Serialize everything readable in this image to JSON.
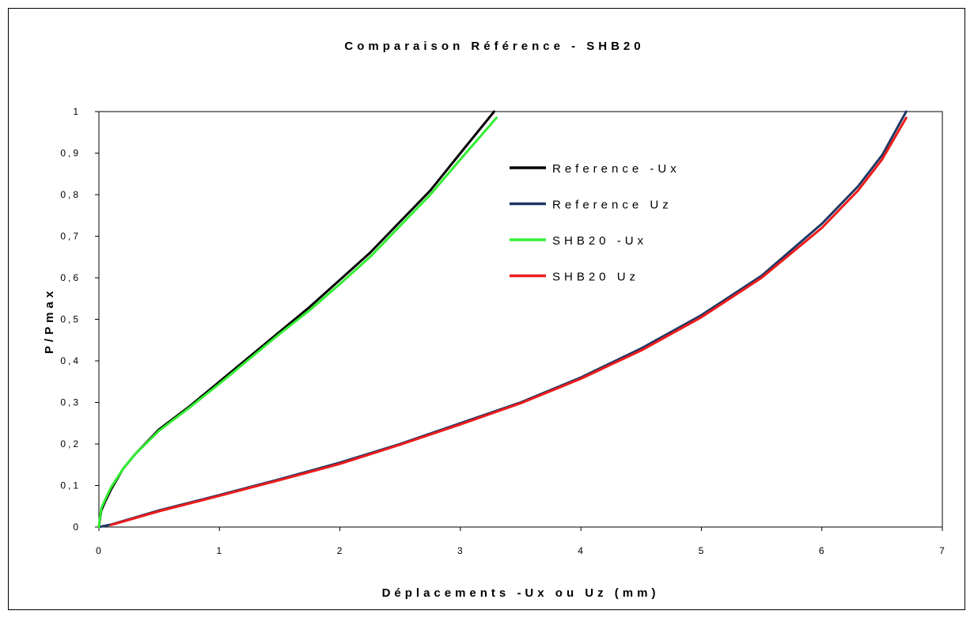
{
  "chart_data": {
    "type": "line",
    "title": "Comparaison Référence - SHB20",
    "xlabel": "Déplacements -Ux ou Uz (mm)",
    "ylabel": "P/Pmax",
    "xlim": [
      0,
      7
    ],
    "ylim": [
      0,
      1
    ],
    "xticks": [
      "0",
      "1",
      "2",
      "3",
      "4",
      "5",
      "6",
      "7"
    ],
    "yticks": [
      "0",
      "0,1",
      "0,2",
      "0,3",
      "0,4",
      "0,5",
      "0,6",
      "0,7",
      "0,8",
      "0,9",
      "1"
    ],
    "grid": false,
    "legend_position": "upper-center",
    "series": [
      {
        "name": "Reference -Ux",
        "color": "#000000",
        "points": [
          [
            0,
            0
          ],
          [
            0.02,
            0.04
          ],
          [
            0.05,
            0.06
          ],
          [
            0.1,
            0.09
          ],
          [
            0.2,
            0.14
          ],
          [
            0.3,
            0.175
          ],
          [
            0.5,
            0.235
          ],
          [
            0.75,
            0.29
          ],
          [
            1.0,
            0.35
          ],
          [
            1.25,
            0.41
          ],
          [
            1.5,
            0.47
          ],
          [
            1.75,
            0.53
          ],
          [
            2.0,
            0.595
          ],
          [
            2.25,
            0.66
          ],
          [
            2.5,
            0.735
          ],
          [
            2.75,
            0.81
          ],
          [
            3.0,
            0.9
          ],
          [
            3.28,
            1.0
          ]
        ]
      },
      {
        "name": "Reference Uz",
        "color": "#1f3864",
        "points": [
          [
            0,
            0
          ],
          [
            0.1,
            0.006
          ],
          [
            0.5,
            0.04
          ],
          [
            1.0,
            0.077
          ],
          [
            1.5,
            0.115
          ],
          [
            2.0,
            0.155
          ],
          [
            2.5,
            0.2
          ],
          [
            3.0,
            0.25
          ],
          [
            3.5,
            0.3
          ],
          [
            4.0,
            0.36
          ],
          [
            4.5,
            0.43
          ],
          [
            5.0,
            0.51
          ],
          [
            5.5,
            0.605
          ],
          [
            6.0,
            0.73
          ],
          [
            6.3,
            0.82
          ],
          [
            6.5,
            0.895
          ],
          [
            6.7,
            1.0
          ]
        ]
      },
      {
        "name": "SHB20 -Ux",
        "color": "#33ee33",
        "points": [
          [
            0,
            0
          ],
          [
            0.02,
            0.045
          ],
          [
            0.05,
            0.065
          ],
          [
            0.1,
            0.095
          ],
          [
            0.2,
            0.14
          ],
          [
            0.3,
            0.175
          ],
          [
            0.5,
            0.232
          ],
          [
            0.75,
            0.287
          ],
          [
            1.0,
            0.345
          ],
          [
            1.25,
            0.405
          ],
          [
            1.5,
            0.465
          ],
          [
            1.75,
            0.522
          ],
          [
            2.0,
            0.585
          ],
          [
            2.25,
            0.65
          ],
          [
            2.5,
            0.725
          ],
          [
            2.75,
            0.8
          ],
          [
            3.0,
            0.885
          ],
          [
            3.3,
            0.985
          ]
        ]
      },
      {
        "name": "SHB20 Uz",
        "color": "#ee1c1c",
        "points": [
          [
            0.1,
            0.005
          ],
          [
            0.5,
            0.038
          ],
          [
            1.0,
            0.075
          ],
          [
            1.5,
            0.113
          ],
          [
            2.0,
            0.152
          ],
          [
            2.5,
            0.198
          ],
          [
            3.0,
            0.247
          ],
          [
            3.5,
            0.298
          ],
          [
            4.0,
            0.357
          ],
          [
            4.5,
            0.425
          ],
          [
            5.0,
            0.505
          ],
          [
            5.5,
            0.6
          ],
          [
            6.0,
            0.72
          ],
          [
            6.3,
            0.81
          ],
          [
            6.5,
            0.885
          ],
          [
            6.7,
            0.985
          ]
        ]
      }
    ]
  }
}
